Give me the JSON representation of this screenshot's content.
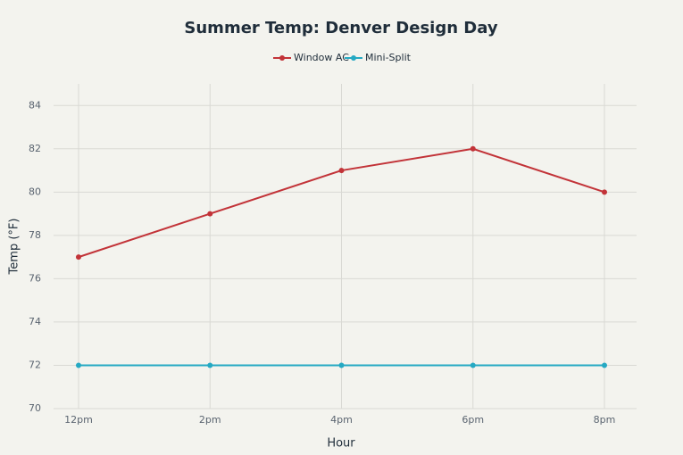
{
  "chart_data": {
    "type": "line",
    "title": "Summer Temp: Denver Design Day",
    "x_label": "Hour",
    "y_label": "Temp (°F)",
    "categories": [
      "12pm",
      "2pm",
      "4pm",
      "6pm",
      "8pm"
    ],
    "series": [
      {
        "name": "Window AC",
        "color": "#c23338",
        "values": [
          77,
          79,
          81,
          82,
          80
        ]
      },
      {
        "name": "Mini-Split",
        "color": "#25a9c3",
        "values": [
          72,
          72,
          72,
          72,
          72
        ]
      }
    ],
    "ylim": [
      70,
      85
    ],
    "yticks": [
      70,
      72,
      74,
      76,
      78,
      80,
      82,
      84
    ],
    "grid": true
  }
}
